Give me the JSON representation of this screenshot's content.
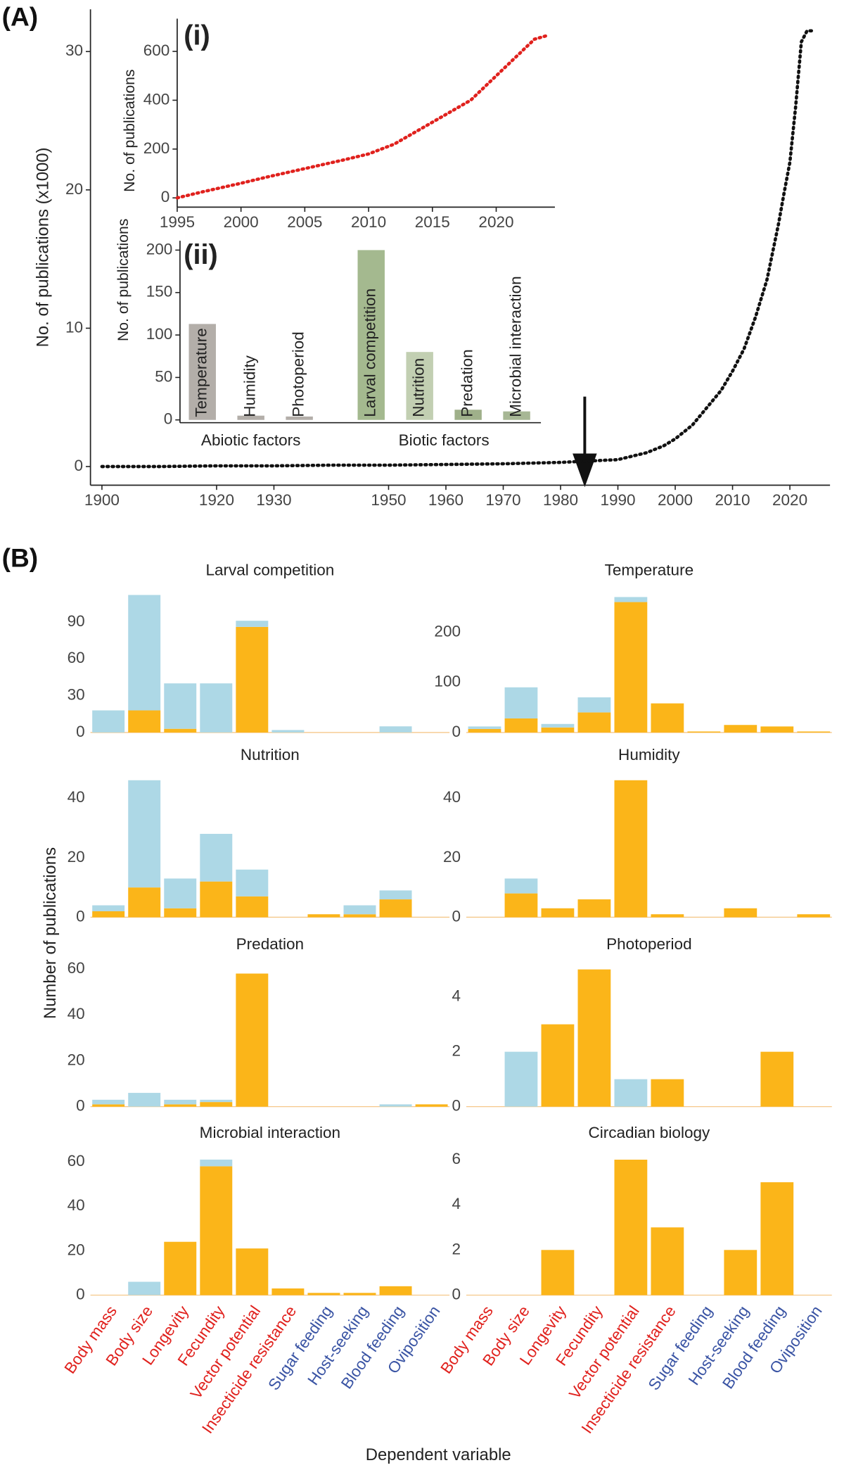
{
  "chart_data": [
    {
      "type": "line",
      "label": "(A)",
      "ylabel": "No. of publications (x1000)",
      "x": [
        1900,
        1910,
        1920,
        1930,
        1940,
        1950,
        1960,
        1970,
        1980,
        1985,
        1990,
        1993,
        1995,
        1998,
        2000,
        2003,
        2005,
        2008,
        2010,
        2012,
        2014,
        2016,
        2018,
        2019,
        2020,
        2021,
        2022,
        2023,
        2024
      ],
      "values": [
        0,
        0,
        0.05,
        0.05,
        0.1,
        0.1,
        0.15,
        0.2,
        0.3,
        0.4,
        0.5,
        0.8,
        1.0,
        1.5,
        2.0,
        3.0,
        4.0,
        5.5,
        6.9,
        8.5,
        10.8,
        13.5,
        17.5,
        19.8,
        22,
        26,
        30.7,
        31.5,
        31.5
      ],
      "color": "#111111",
      "xlim": [
        1898,
        2027
      ],
      "ylim": [
        -1.35,
        33.05
      ],
      "xticks": [
        1900,
        1920,
        1930,
        1950,
        1960,
        1970,
        1980,
        1990,
        2000,
        2010,
        2020
      ],
      "yticks": [
        0,
        10,
        20,
        30
      ]
    },
    {
      "type": "line",
      "label": "(i)",
      "ylabel": "No. of publications",
      "x": [
        1995,
        1997,
        2000,
        2002,
        2005,
        2008,
        2010,
        2012,
        2014,
        2016,
        2018,
        2020,
        2022,
        2023,
        2024
      ],
      "values": [
        0,
        25,
        60,
        85,
        120,
        155,
        180,
        220,
        280,
        340,
        400,
        500,
        600,
        650,
        665
      ],
      "color": "#e0211d",
      "xlim": [
        1995,
        2024.6
      ],
      "ylim": [
        -38,
        734
      ],
      "xticks": [
        1995,
        2000,
        2005,
        2010,
        2015,
        2020
      ],
      "yticks": [
        0,
        200,
        400,
        600
      ]
    },
    {
      "type": "grouped-bar",
      "label": "(ii)",
      "ylabel": "No. of publications",
      "ylim": [
        -3.3,
        211
      ],
      "yticks": [
        0,
        50,
        100,
        150,
        200
      ],
      "groups": [
        {
          "name": "Abiotic factors",
          "categories": [
            "Temperature",
            "Humidity",
            "Photoperiod"
          ],
          "values": [
            113,
            5,
            4
          ],
          "colors": [
            "#b3aea9",
            "#b3aea9",
            "#b3aea9"
          ]
        },
        {
          "name": "Biotic factors",
          "categories": [
            "Larval competition",
            "Nutrition",
            "Predation",
            "Microbial interaction"
          ],
          "values": [
            200,
            80,
            12,
            10
          ],
          "colors": [
            "#a4b98f",
            "#c2cfb2",
            "#9fb08a",
            "#a7b795"
          ]
        }
      ]
    },
    {
      "type": "stacked-bar-facets",
      "label": "(B)",
      "ylabel": "Number of publications",
      "xlabel": "Dependent variable",
      "categories": [
        "Body mass",
        "Body size",
        "Longevity",
        "Fecundity",
        "Vector potential",
        "Insecticide resistance",
        "Sugar feeding",
        "Host-seeking",
        "Blood feeding",
        "Oviposition"
      ],
      "category_colors": [
        "#e0211d",
        "#e0211d",
        "#e0211d",
        "#e0211d",
        "#e0211d",
        "#e0211d",
        "#3a54a4",
        "#3a54a4",
        "#3a54a4",
        "#3a54a4"
      ],
      "facets": [
        {
          "title": "Larval competition",
          "ylim": [
            0,
            114
          ],
          "yticks": [
            0,
            30,
            60,
            90
          ],
          "series": [
            {
              "color": "#fbb519",
              "values": [
                0,
                18,
                3,
                0,
                86,
                0,
                0,
                0,
                0,
                0
              ]
            },
            {
              "color": "#add8e6",
              "values": [
                18,
                94,
                37,
                40,
                5,
                2,
                0,
                0,
                5,
                0
              ]
            }
          ]
        },
        {
          "title": "Temperature",
          "ylim": [
            0,
            279
          ],
          "yticks": [
            0,
            100,
            200
          ],
          "series": [
            {
              "color": "#fbb519",
              "values": [
                7,
                28,
                10,
                40,
                260,
                58,
                2,
                15,
                12,
                2
              ]
            },
            {
              "color": "#add8e6",
              "values": [
                5,
                62,
                7,
                30,
                10,
                0,
                0,
                0,
                0,
                0
              ]
            }
          ]
        },
        {
          "title": "Nutrition",
          "ylim": [
            0,
            47
          ],
          "yticks": [
            0,
            20,
            40
          ],
          "series": [
            {
              "color": "#fbb519",
              "values": [
                2,
                10,
                3,
                12,
                7,
                0,
                1,
                1,
                6,
                0
              ]
            },
            {
              "color": "#add8e6",
              "values": [
                2,
                36,
                10,
                16,
                9,
                0,
                0,
                3,
                3,
                0
              ]
            }
          ]
        },
        {
          "title": "Humidity",
          "ylim": [
            0,
            47
          ],
          "yticks": [
            0,
            20,
            40
          ],
          "series": [
            {
              "color": "#fbb519",
              "values": [
                0,
                8,
                3,
                6,
                46,
                1,
                0,
                3,
                0,
                1
              ]
            },
            {
              "color": "#add8e6",
              "values": [
                0,
                5,
                0,
                0,
                0,
                0,
                0,
                0,
                0,
                0
              ]
            }
          ]
        },
        {
          "title": "Predation",
          "ylim": [
            0,
            61
          ],
          "yticks": [
            0,
            20,
            40,
            60
          ],
          "series": [
            {
              "color": "#fbb519",
              "values": [
                1,
                0,
                1,
                2,
                58,
                0,
                0,
                0,
                0,
                1
              ]
            },
            {
              "color": "#add8e6",
              "values": [
                2,
                6,
                2,
                1,
                0,
                0,
                0,
                0,
                1,
                0
              ]
            }
          ]
        },
        {
          "title": "Photoperiod",
          "ylim": [
            0,
            5.1
          ],
          "yticks": [
            0,
            2,
            4
          ],
          "series": [
            {
              "color": "#fbb519",
              "values": [
                0,
                0,
                3,
                5,
                0,
                1,
                0,
                0,
                2,
                0
              ]
            },
            {
              "color": "#add8e6",
              "values": [
                0,
                2,
                0,
                0,
                1,
                0,
                0,
                0,
                0,
                0
              ]
            }
          ]
        },
        {
          "title": "Microbial interaction",
          "ylim": [
            0,
            63
          ],
          "yticks": [
            0,
            20,
            40,
            60
          ],
          "series": [
            {
              "color": "#fbb519",
              "values": [
                0,
                0,
                24,
                58,
                21,
                3,
                1,
                1,
                4,
                0
              ]
            },
            {
              "color": "#add8e6",
              "values": [
                0,
                6,
                0,
                3,
                0,
                0,
                0,
                0,
                0,
                0
              ]
            }
          ]
        },
        {
          "title": "Circadian biology",
          "ylim": [
            0,
            6.2
          ],
          "yticks": [
            0,
            2,
            4,
            6
          ],
          "series": [
            {
              "color": "#fbb519",
              "values": [
                0,
                0,
                2,
                0,
                6,
                3,
                0,
                2,
                5,
                0
              ]
            },
            {
              "color": "#add8e6",
              "values": [
                0,
                0,
                0,
                0,
                0,
                0,
                0,
                0,
                0,
                0
              ]
            }
          ]
        }
      ]
    }
  ]
}
